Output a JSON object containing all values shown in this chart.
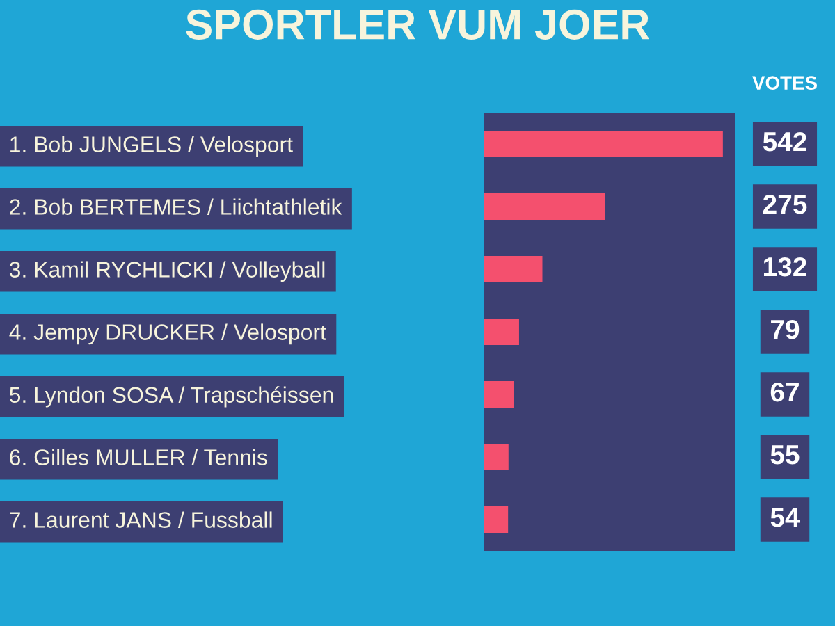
{
  "chart_data": {
    "type": "bar",
    "orientation": "horizontal",
    "title": "SPORTLER VUM JOER",
    "categories": [
      "1. Bob JUNGELS / Velosport",
      "2. Bob BERTEMES / Liichtathletik",
      "3. Kamil RYCHLICKI / Volleyball",
      "4. Jempy DRUCKER / Velosport",
      "5. Lyndon SOSA / Trapschéissen",
      "6. Gilles MULLER / Tennis",
      "7. Laurent JANS / Fussball"
    ],
    "values": [
      542,
      275,
      132,
      79,
      67,
      55,
      54
    ],
    "color": "#f4506e",
    "data_labels": true,
    "tick_labels": "y",
    "annotations": [
      "VOTES"
    ]
  }
}
